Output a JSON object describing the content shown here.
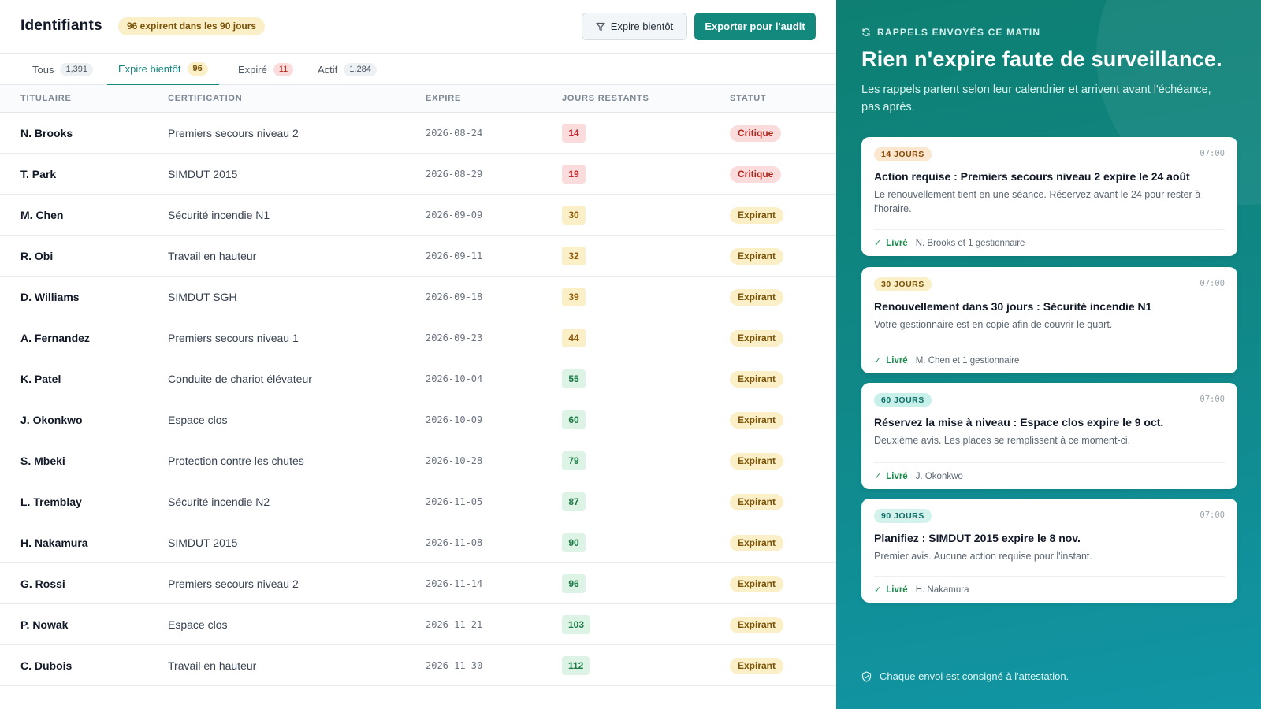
{
  "header": {
    "title": "Identifiants",
    "badge": "96 expirent dans les 90 jours",
    "filter_label": "Expire bientôt",
    "export_label": "Exporter pour l'audit"
  },
  "tabs": [
    {
      "label": "Tous",
      "count": "1,391"
    },
    {
      "label": "Expire bientôt",
      "count": "96"
    },
    {
      "label": "Expiré",
      "count": "11"
    },
    {
      "label": "Actif",
      "count": "1,284"
    }
  ],
  "columns": [
    "TITULAIRE",
    "CERTIFICATION",
    "EXPIRE",
    "JOURS RESTANTS",
    "STATUT"
  ],
  "rows": [
    {
      "holder": "N. Brooks",
      "cert": "Premiers secours niveau 2",
      "expires": "2026-08-24",
      "days": "14",
      "level": "red",
      "status": "Critique",
      "status_kind": "crit"
    },
    {
      "holder": "T. Park",
      "cert": "SIMDUT 2015",
      "expires": "2026-08-29",
      "days": "19",
      "level": "red",
      "status": "Critique",
      "status_kind": "crit"
    },
    {
      "holder": "M. Chen",
      "cert": "Sécurité incendie N1",
      "expires": "2026-09-09",
      "days": "30",
      "level": "amber",
      "status": "Expirant",
      "status_kind": "exp"
    },
    {
      "holder": "R. Obi",
      "cert": "Travail en hauteur",
      "expires": "2026-09-11",
      "days": "32",
      "level": "amber",
      "status": "Expirant",
      "status_kind": "exp"
    },
    {
      "holder": "D. Williams",
      "cert": "SIMDUT SGH",
      "expires": "2026-09-18",
      "days": "39",
      "level": "amber",
      "status": "Expirant",
      "status_kind": "exp"
    },
    {
      "holder": "A. Fernandez",
      "cert": "Premiers secours niveau 1",
      "expires": "2026-09-23",
      "days": "44",
      "level": "amber",
      "status": "Expirant",
      "status_kind": "exp"
    },
    {
      "holder": "K. Patel",
      "cert": "Conduite de chariot élévateur",
      "expires": "2026-10-04",
      "days": "55",
      "level": "green",
      "status": "Expirant",
      "status_kind": "exp"
    },
    {
      "holder": "J. Okonkwo",
      "cert": "Espace clos",
      "expires": "2026-10-09",
      "days": "60",
      "level": "green",
      "status": "Expirant",
      "status_kind": "exp"
    },
    {
      "holder": "S. Mbeki",
      "cert": "Protection contre les chutes",
      "expires": "2026-10-28",
      "days": "79",
      "level": "green",
      "status": "Expirant",
      "status_kind": "exp"
    },
    {
      "holder": "L. Tremblay",
      "cert": "Sécurité incendie N2",
      "expires": "2026-11-05",
      "days": "87",
      "level": "green",
      "status": "Expirant",
      "status_kind": "exp"
    },
    {
      "holder": "H. Nakamura",
      "cert": "SIMDUT 2015",
      "expires": "2026-11-08",
      "days": "90",
      "level": "green",
      "status": "Expirant",
      "status_kind": "exp"
    },
    {
      "holder": "G. Rossi",
      "cert": "Premiers secours niveau 2",
      "expires": "2026-11-14",
      "days": "96",
      "level": "green",
      "status": "Expirant",
      "status_kind": "exp"
    },
    {
      "holder": "P. Nowak",
      "cert": "Espace clos",
      "expires": "2026-11-21",
      "days": "103",
      "level": "green",
      "status": "Expirant",
      "status_kind": "exp"
    },
    {
      "holder": "C. Dubois",
      "cert": "Travail en hauteur",
      "expires": "2026-11-30",
      "days": "112",
      "level": "green",
      "status": "Expirant",
      "status_kind": "exp"
    }
  ],
  "panel": {
    "eyebrow": "RAPPELS ENVOYÉS CE MATIN",
    "title": "Rien n'expire faute de surveillance.",
    "lede": "Les rappels partent selon leur calendrier et arrivent avant l'échéance, pas après.",
    "reminders": [
      {
        "pill": "14 JOURS",
        "time": "07:00",
        "title": "Action requise : Premiers secours niveau 2 expire le 24 août",
        "body": "Le renouvellement tient en une séance. Réservez avant le 24 pour rester à l'horaire.",
        "delivered": "Livré",
        "recipients": "N. Brooks et 1 gestionnaire"
      },
      {
        "pill": "30 JOURS",
        "time": "07:00",
        "title": "Renouvellement dans 30 jours : Sécurité incendie N1",
        "body": "Votre gestionnaire est en copie afin de couvrir le quart.",
        "delivered": "Livré",
        "recipients": "M. Chen et 1 gestionnaire"
      },
      {
        "pill": "60 JOURS",
        "time": "07:00",
        "title": "Réservez la mise à niveau : Espace clos expire le 9 oct.",
        "body": "Deuxième avis. Les places se remplissent à ce moment-ci.",
        "delivered": "Livré",
        "recipients": "J. Okonkwo"
      },
      {
        "pill": "90 JOURS",
        "time": "07:00",
        "title": "Planifiez : SIMDUT 2015 expire le 8 nov.",
        "body": "Premier avis. Aucune action requise pour l'instant.",
        "delivered": "Livré",
        "recipients": "H. Nakamura"
      }
    ],
    "footnote": "Chaque envoi est consigné à l'attestation."
  },
  "colors": {
    "accent": "#13897e",
    "critical": "#c0262d",
    "warning": "#8a5a07",
    "ok": "#1e7a46"
  },
  "icons": {
    "filter": "filter-icon",
    "refresh": "refresh-icon",
    "shield": "shield-check-icon",
    "check": "check-icon"
  }
}
